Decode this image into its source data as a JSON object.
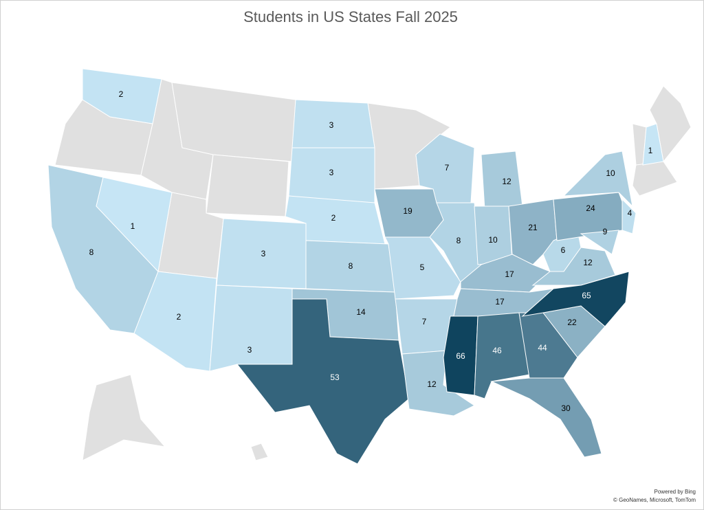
{
  "chart_data": {
    "type": "choropleth",
    "title": "Students in US States Fall 2025",
    "values": [
      2,
      8,
      1,
      2,
      3,
      3,
      3,
      3,
      2,
      8,
      14,
      53,
      19,
      5,
      7,
      12,
      7,
      8,
      12,
      10,
      21,
      17,
      17,
      66,
      46,
      44,
      30,
      22,
      65,
      12,
      6,
      24,
      10,
      4,
      9,
      1
    ],
    "color_scale": [
      "#c6e5f5",
      "#0f445e"
    ],
    "empty_color": "#e0e0e0",
    "attribution": [
      "Powered by Bing",
      "© GeoNames, Microsoft, TomTom"
    ]
  }
}
